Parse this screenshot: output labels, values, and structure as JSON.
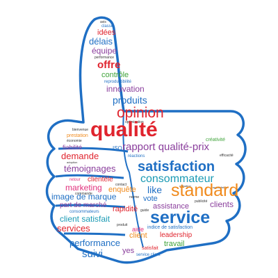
{
  "colors": {
    "outline": "#1f6fc4",
    "red": "#e0242e",
    "blue": "#1f6fc4",
    "purple": "#8a3e9c",
    "green": "#3fa33a",
    "orange": "#f08a1c",
    "pink": "#e0307c",
    "teal": "#1a9ab4",
    "dark": "#333333"
  },
  "icon": "thumbs-up-icon",
  "words": {
    "avis": "avis",
    "classe": "classe",
    "idees": "idées",
    "delais": "délais",
    "equipe": "équipe",
    "performance_small": "performance",
    "offre": "offre",
    "controle": "contrôle",
    "reproductibilite": "reproductibilité",
    "innovation": "innovation",
    "produits": "produits",
    "opinion": "opinion",
    "optimisation": "optimisation",
    "bienvenue": "bienvenue",
    "prestation": "prestation",
    "qualite": "qualité",
    "economie": "économie",
    "fiabilite": "fiabilité",
    "demande": "demande",
    "creativite": "créativité",
    "iso": "ISO",
    "rapport": "rapport qualité-prix",
    "adoption": "adoption",
    "reactions": "réactions",
    "efficacite": "efficacité",
    "temoignages": "témoignages",
    "satisfaction": "satisfaction",
    "retour": "retour",
    "clientele": "clientèle",
    "consommateur": "consommateur",
    "marketing": "marketing",
    "commande": "commande",
    "contact": "contact",
    "enquete": "enquête",
    "like": "like",
    "utilisation": "utilisation",
    "specialistes": "spécialistes",
    "image": "image de marque",
    "norme": "norme",
    "vote": "vote",
    "standard": "standard",
    "part": "part de marché",
    "consommateurs": "consommateurs",
    "rapidite": "rapidité",
    "guide": "guide",
    "publicite": "publicité",
    "assistance": "assistance",
    "clients": "clients",
    "client_satisfait": "client satisfait",
    "service": "service",
    "services": "services",
    "produit_small": "produit",
    "aide": "aide",
    "indice": "indice de satisfaction",
    "client": "client",
    "leadership": "leadership",
    "performance": "performance",
    "travail": "travail",
    "suivi": "suivi",
    "satisfait": "satisfait",
    "yes": "yes",
    "service_client": "service client"
  }
}
